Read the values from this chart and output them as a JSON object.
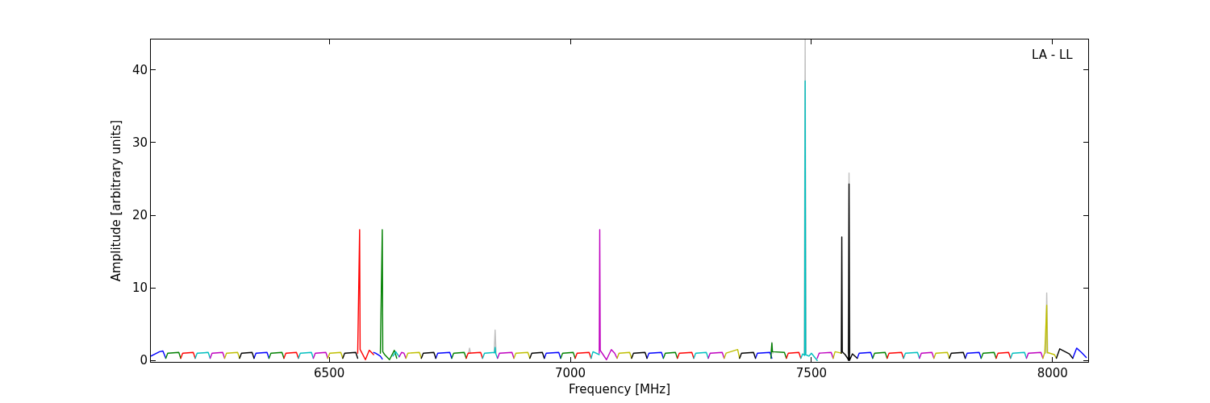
{
  "chart_data": {
    "type": "line",
    "xlabel": "Frequency [MHz]",
    "ylabel": "Amplitude [arbitrary units]",
    "annotations": [
      "LA - LL"
    ],
    "xlim": [
      6130,
      8074
    ],
    "xticks": [
      6500,
      7000,
      7500,
      8000
    ],
    "ylim": [
      -0.2,
      44.2
    ],
    "yticks": [
      0,
      10,
      20,
      30,
      40
    ],
    "grid": false,
    "marker": "none",
    "line_style": "solid",
    "series": [
      {
        "color": "#bfbfbf",
        "x": [
          6789,
          6791,
          6793,
          null,
          6842,
          6844,
          6846,
          null,
          7416,
          7418,
          7420,
          null,
          7485,
          7487,
          7489,
          null,
          7576,
          7578,
          7580,
          null,
          7986,
          7988,
          7990
        ],
        "values": [
          1,
          1.7,
          1,
          null,
          1,
          4.2,
          1,
          null,
          1,
          2.5,
          1,
          null,
          1,
          44.2,
          1,
          null,
          1,
          25.8,
          1,
          null,
          1,
          9.3,
          1
        ]
      },
      {
        "color": "#0000ff",
        "x": [
          6130,
          6148,
          6155,
          6161,
          null,
          6344,
          6348,
          6371,
          6375,
          null,
          6592,
          6596,
          6606,
          6610,
          null,
          6721,
          6725,
          6750,
          6754,
          null,
          6946,
          6950,
          6976,
          6980,
          null,
          7159,
          7163,
          7189,
          7193,
          null,
          7384,
          7388,
          7414,
          7418,
          null,
          7595,
          7599,
          7623,
          7627,
          null,
          7819,
          7823,
          7848,
          7852,
          null,
          8042,
          8050,
          8060,
          8070
        ],
        "values": [
          0.6,
          1.2,
          1.3,
          0.3,
          null,
          0.3,
          1.0,
          1.1,
          0.3,
          null,
          1.1,
          1.0,
          0.6,
          0.2,
          null,
          0.3,
          1.0,
          1.1,
          0.3,
          null,
          0.3,
          1.0,
          1.1,
          0.3,
          null,
          0.3,
          1.0,
          1.1,
          0.3,
          null,
          0.3,
          1.0,
          1.1,
          0.3,
          null,
          0.3,
          1.0,
          1.1,
          0.3,
          null,
          0.3,
          1.0,
          1.1,
          0.3,
          null,
          0.3,
          1.7,
          1.1,
          0.4
        ]
      },
      {
        "color": "#008000",
        "x": [
          6161,
          6165,
          6188,
          6192,
          null,
          6375,
          6379,
          6402,
          6406,
          null,
          6606,
          6610,
          6611,
          6615,
          6625,
          6635,
          6640,
          null,
          6754,
          6758,
          6780,
          6784,
          null,
          6980,
          6984,
          7006,
          7010,
          null,
          7193,
          7197,
          7218,
          7222,
          null,
          7416,
          7418,
          7419,
          7444,
          7448,
          null,
          7627,
          7631,
          7653,
          7657,
          null,
          7852,
          7856,
          7879,
          7883
        ],
        "values": [
          0.3,
          1.0,
          1.1,
          0.3,
          null,
          0.3,
          1.0,
          1.1,
          0.3,
          null,
          1.0,
          18,
          1.2,
          0.8,
          0.1,
          1.4,
          0.3,
          null,
          0.3,
          1.0,
          1.1,
          0.3,
          null,
          0.3,
          1.0,
          1.1,
          0.3,
          null,
          0.3,
          1.0,
          1.1,
          0.3,
          null,
          0.3,
          2.4,
          1.2,
          1.1,
          0.3,
          null,
          0.3,
          1.0,
          1.1,
          0.3,
          null,
          0.3,
          1.0,
          1.1,
          0.3
        ]
      },
      {
        "color": "#ff0000",
        "x": [
          6192,
          6196,
          6218,
          6222,
          null,
          6406,
          6410,
          6432,
          6436,
          null,
          6559,
          6563,
          6564,
          6568,
          6575,
          6583,
          6592,
          null,
          6784,
          6788,
          6814,
          6818,
          null,
          7010,
          7014,
          7039,
          7043,
          null,
          7222,
          7226,
          7252,
          7256,
          null,
          7448,
          7452,
          7474,
          7478,
          null,
          7657,
          7661,
          7687,
          7691,
          null,
          7883,
          7887,
          7909,
          7913
        ],
        "values": [
          0.3,
          1.0,
          1.1,
          0.3,
          null,
          0.3,
          1.0,
          1.1,
          0.3,
          null,
          1.0,
          18,
          1.5,
          1.0,
          0.1,
          1.4,
          0.8,
          null,
          0.3,
          1.0,
          1.1,
          0.3,
          null,
          0.3,
          1.0,
          1.1,
          0.3,
          null,
          0.3,
          1.0,
          1.1,
          0.3,
          null,
          0.3,
          1.0,
          1.1,
          0.3,
          null,
          0.3,
          1.0,
          1.1,
          0.3,
          null,
          0.3,
          1.0,
          1.1,
          0.3
        ]
      },
      {
        "color": "#00bfbf",
        "x": [
          6222,
          6226,
          6249,
          6253,
          null,
          6436,
          6440,
          6463,
          6467,
          null,
          6632,
          6638,
          6645,
          null,
          6818,
          6822,
          6843,
          6844,
          6845,
          6849,
          null,
          7043,
          7047,
          7060,
          null,
          7256,
          7260,
          7282,
          7286,
          null,
          7478,
          7482,
          7486,
          7487,
          7488,
          7495,
          7500,
          7506,
          7512,
          null,
          7691,
          7695,
          7720,
          7724,
          null,
          7913,
          7917,
          7942,
          7946
        ],
        "values": [
          0.3,
          1.0,
          1.1,
          0.3,
          null,
          0.3,
          1.0,
          1.1,
          0.3,
          null,
          0.6,
          1.2,
          0.5,
          null,
          0.3,
          1.0,
          1.1,
          1.8,
          1.0,
          0.3,
          null,
          0.3,
          1.2,
          0.8,
          null,
          0.3,
          1.0,
          1.1,
          0.3,
          null,
          0.3,
          0.9,
          0.7,
          38.5,
          0.8,
          0.6,
          1.0,
          0.5,
          0.0,
          null,
          0.3,
          1.0,
          1.1,
          0.3,
          null,
          0.3,
          1.0,
          1.1,
          0.3
        ]
      },
      {
        "color": "#bf00bf",
        "x": [
          6253,
          6257,
          6279,
          6283,
          null,
          6467,
          6471,
          6493,
          6497,
          null,
          6645,
          6650,
          6655,
          6659,
          null,
          6849,
          6853,
          6879,
          6883,
          null,
          7060,
          7061,
          7062,
          7068,
          7075,
          7085,
          7092,
          7097,
          null,
          7286,
          7290,
          7315,
          7319,
          null,
          7512,
          7516,
          7541,
          7545,
          null,
          7724,
          7728,
          7750,
          7754,
          null,
          7946,
          7950,
          7976,
          7980
        ],
        "values": [
          0.3,
          1.0,
          1.1,
          0.3,
          null,
          0.3,
          1.0,
          1.1,
          0.3,
          null,
          0.5,
          1.1,
          1.0,
          0.3,
          null,
          0.3,
          1.0,
          1.1,
          0.3,
          null,
          1.0,
          18,
          1.4,
          0.8,
          0.1,
          1.5,
          1.0,
          0.3,
          null,
          0.3,
          1.0,
          1.1,
          0.3,
          null,
          0.3,
          1.0,
          1.1,
          0.3,
          null,
          0.3,
          1.0,
          1.1,
          0.3,
          null,
          0.3,
          1.0,
          1.1,
          0.3
        ]
      },
      {
        "color": "#bfbf00",
        "x": [
          6283,
          6287,
          6310,
          6314,
          null,
          6497,
          6501,
          6524,
          6528,
          null,
          6659,
          6663,
          6687,
          6691,
          null,
          6883,
          6887,
          6912,
          6916,
          null,
          7097,
          7101,
          7123,
          7127,
          null,
          7319,
          7323,
          7347,
          7351,
          null,
          7545,
          7549,
          7562,
          null,
          7754,
          7758,
          7782,
          7786,
          null,
          7980,
          7984,
          7988,
          7989,
          8004,
          8008
        ],
        "values": [
          0.3,
          1.0,
          1.1,
          0.3,
          null,
          0.3,
          1.0,
          1.1,
          0.3,
          null,
          0.3,
          1.0,
          1.1,
          0.3,
          null,
          0.3,
          1.0,
          1.1,
          0.3,
          null,
          0.3,
          1.0,
          1.1,
          0.3,
          null,
          0.3,
          1.0,
          1.5,
          0.3,
          null,
          0.3,
          1.2,
          1.0,
          null,
          0.3,
          1.0,
          1.1,
          0.3,
          null,
          0.3,
          1.1,
          7.6,
          1.1,
          0.8,
          0.3
        ]
      },
      {
        "color": "#000000",
        "x": [
          6314,
          6318,
          6340,
          6344,
          null,
          6528,
          6532,
          6555,
          6559,
          null,
          6691,
          6695,
          6717,
          6721,
          null,
          6916,
          6920,
          6942,
          6946,
          null,
          7127,
          7131,
          7155,
          7159,
          null,
          7351,
          7355,
          7380,
          7384,
          null,
          7562,
          7563,
          7564,
          7570,
          7575,
          7577,
          7578,
          7579,
          7585,
          7595,
          null,
          7786,
          7790,
          7815,
          7819,
          null,
          8008,
          8015,
          8035,
          8042
        ],
        "values": [
          0.3,
          1.0,
          1.1,
          0.3,
          null,
          0.3,
          1.0,
          1.1,
          0.3,
          null,
          0.3,
          1.0,
          1.1,
          0.3,
          null,
          0.3,
          1.0,
          1.1,
          0.3,
          null,
          0.3,
          1.0,
          1.1,
          0.3,
          null,
          0.3,
          1.0,
          1.1,
          0.3,
          null,
          1.0,
          17,
          1.2,
          0.8,
          0.3,
          0.0,
          24.3,
          0.0,
          0.9,
          0.3,
          null,
          0.3,
          1.0,
          1.1,
          0.3,
          null,
          0.3,
          1.6,
          0.9,
          0.3
        ]
      }
    ]
  }
}
